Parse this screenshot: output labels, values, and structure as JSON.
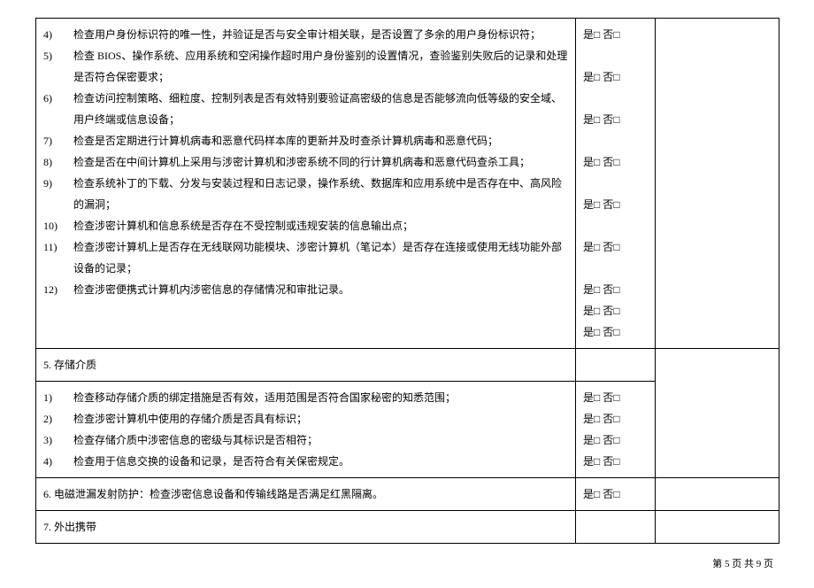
{
  "section4_items": [
    {
      "num": "4)",
      "text": "检查用户身份标识符的唯一性，并验证是否与安全审计相关联，是否设置了多余的用户身份标识符；",
      "answer": "是□ 否□"
    },
    {
      "num": "5)",
      "text": "检查 BIOS、操作系统、应用系统和空闲操作超时用户身份鉴别的设置情况，查验鉴别失败后的记录和处理是否符合保密要求；",
      "answer": "是□ 否□"
    },
    {
      "num": "6)",
      "text": "检查访问控制策略、细粒度、控制列表是否有效特别要验证高密级的信息是否能够流向低等级的安全域、用户终端或信息设备；",
      "answer": "是□ 否□"
    },
    {
      "num": "7)",
      "text": "检查是否定期进行计算机病毒和恶意代码样本库的更新并及时查杀计算机病毒和恶意代码；",
      "answer": "是□ 否□"
    },
    {
      "num": "8)",
      "text": "检查是否在中间计算机上采用与涉密计算机和涉密系统不同的行计算机病毒和恶意代码查杀工具；",
      "answer": "是□ 否□"
    },
    {
      "num": "9)",
      "text": "检查系统补丁的下载、分发与安装过程和日志记录，操作系统、数据库和应用系统中是否存在中、高风险的漏洞；",
      "answer": "是□ 否□"
    },
    {
      "num": "10)",
      "text": "检查涉密计算机和信息系统是否存在不受控制或违规安装的信息输出点；",
      "answer": "是□ 否□"
    },
    {
      "num": "11)",
      "text": "检查涉密计算机上是否存在无线联网功能模块、涉密计算机（笔记本）是否存在连接或使用无线功能外部设备的记录；",
      "answer": "是□ 否□"
    },
    {
      "num": "12)",
      "text": "检查涉密便携式计算机内涉密信息的存储情况和审批记录。",
      "answer": "是□ 否□"
    }
  ],
  "section5_title": "5. 存储介质",
  "section5_items": [
    {
      "num": "1)",
      "text": "检查移动存储介质的绑定措施是否有效，适用范围是否符合国家秘密的知悉范围；",
      "answer": "是□ 否□"
    },
    {
      "num": "2)",
      "text": "检查涉密计算机中使用的存储介质是否具有标识；",
      "answer": "是□ 否□"
    },
    {
      "num": "3)",
      "text": "检查存储介质中涉密信息的密级与其标识是否相符；",
      "answer": "是□ 否□"
    },
    {
      "num": "4)",
      "text": "检查用于信息交换的设备和记录，是否符合有关保密规定。",
      "answer": "是□ 否□"
    }
  ],
  "section6": {
    "text": "6. 电磁泄漏发射防护：检查涉密信息设备和传输线路是否满足红黑隔离。",
    "answer": "是□ 否□"
  },
  "section7_title": "7. 外出携带",
  "footer": "第 5 页 共 9 页",
  "ans11_blank": "",
  "ans11_val": "是□ 否□"
}
